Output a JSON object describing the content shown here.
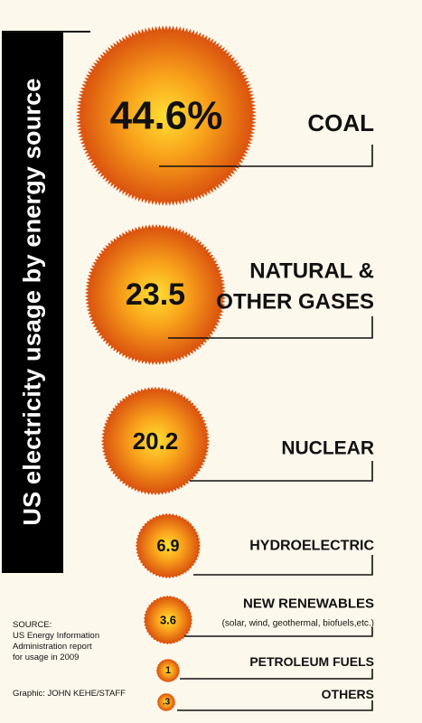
{
  "title": "US electricity usage by energy source",
  "source_lines": [
    "SOURCE:",
    "US Energy Information",
    "Administration report",
    "for usage in 2009"
  ],
  "credit": "Graphic: JOHN KEHE/STAFF",
  "colors": {
    "bubble_center": "#ffe033",
    "bubble_mid": "#f9a21b",
    "bubble_edge": "#d84d0e",
    "text": "#111111",
    "background": "#fdf8ec"
  },
  "chart_data": {
    "type": "bubble",
    "unit": "percent",
    "title": "US electricity usage by energy source",
    "categories": [
      "COAL",
      "NATURAL & OTHER GASES",
      "NUCLEAR",
      "HYDROELECTRIC",
      "NEW RENEWABLES",
      "PETROLEUM FUELS",
      "OTHERS"
    ],
    "values": [
      44.6,
      23.5,
      20.2,
      6.9,
      3.6,
      1,
      0.3
    ],
    "items": [
      {
        "label_lines": [
          "COAL"
        ],
        "value": 44.6,
        "value_label": "44.6%"
      },
      {
        "label_lines": [
          "NATURAL &",
          "OTHER GASES"
        ],
        "value": 23.5,
        "value_label": "23.5"
      },
      {
        "label_lines": [
          "NUCLEAR"
        ],
        "value": 20.2,
        "value_label": "20.2"
      },
      {
        "label_lines": [
          "HYDROELECTRIC"
        ],
        "value": 6.9,
        "value_label": "6.9"
      },
      {
        "label_lines": [
          "NEW RENEWABLES"
        ],
        "sublabel": "(solar, wind, geothermal, biofuels,etc.)",
        "value": 3.6,
        "value_label": "3.6"
      },
      {
        "label_lines": [
          "PETROLEUM FUELS"
        ],
        "value": 1,
        "value_label": "1"
      },
      {
        "label_lines": [
          "OTHERS"
        ],
        "value": 0.3,
        "value_label": ".3"
      }
    ]
  }
}
